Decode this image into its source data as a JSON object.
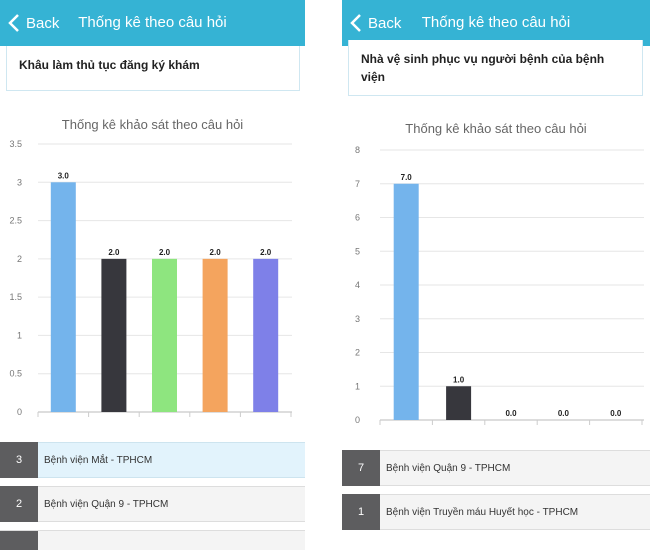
{
  "screens": [
    {
      "header": {
        "back_label": "Back",
        "title": "Thống kê theo câu hỏi"
      },
      "question": "Khâu làm thủ tục đăng ký khám",
      "chart_data": {
        "type": "bar",
        "title": "Thống kê khảo sát theo câu hỏi",
        "yticks": [
          "0",
          "0.5",
          "1",
          "1.5",
          "2",
          "2.5",
          "3",
          "3.5"
        ],
        "ylim": [
          0,
          3.5
        ],
        "values": [
          3.0,
          2.0,
          2.0,
          2.0,
          2.0
        ],
        "value_labels": [
          "3.0",
          "2.0",
          "2.0",
          "2.0",
          "2.0"
        ],
        "colors": [
          "#74b4ec",
          "#37373d",
          "#8ee57f",
          "#f4a45e",
          "#7e80e8"
        ]
      },
      "list": [
        {
          "count": "3",
          "name": "Bệnh viện Mắt - TPHCM",
          "highlight": true
        },
        {
          "count": "2",
          "name": "Bệnh viện Quận 9 - TPHCM",
          "highlight": false
        }
      ]
    },
    {
      "header": {
        "back_label": "Back",
        "title": "Thống kê theo câu hỏi"
      },
      "question": "Nhà vệ sinh phục vụ người bệnh của bệnh viện",
      "chart_data": {
        "type": "bar",
        "title": "Thống kê khảo sát theo câu hỏi",
        "yticks": [
          "0",
          "1",
          "2",
          "3",
          "4",
          "5",
          "6",
          "7",
          "8"
        ],
        "ylim": [
          0,
          8
        ],
        "values": [
          7.0,
          1.0,
          0.0,
          0.0,
          0.0
        ],
        "value_labels": [
          "7.0",
          "1.0",
          "0.0",
          "0.0",
          "0.0"
        ],
        "colors": [
          "#74b4ec",
          "#37373d",
          "#8ee57f",
          "#f4a45e",
          "#7e80e8"
        ]
      },
      "list": [
        {
          "count": "7",
          "name": "Bệnh viện Quận 9 - TPHCM",
          "highlight": false
        },
        {
          "count": "1",
          "name": "Bệnh viện Truyền máu Huyết học - TPHCM",
          "highlight": false
        }
      ]
    }
  ]
}
